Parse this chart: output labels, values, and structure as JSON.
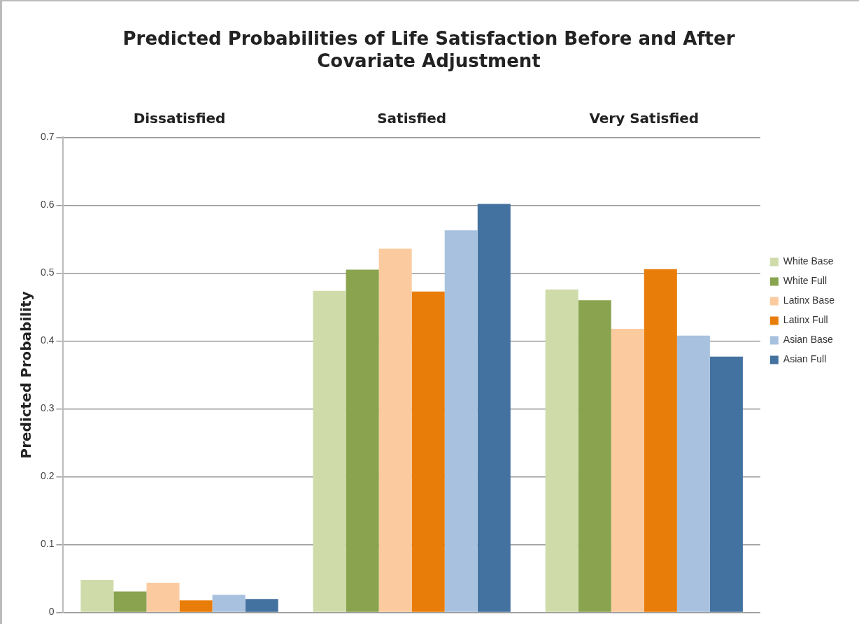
{
  "chart_data": {
    "type": "bar",
    "title": [
      "Predicted Probabilities of Life Satisfaction Before and After",
      "Covariate Adjustment"
    ],
    "ylabel": "Predicted Probability",
    "categories": [
      "Dissatisfied",
      "Satisfied",
      "Very Satisfied"
    ],
    "series": [
      {
        "name": "White Base",
        "color": "#cfdcaa",
        "values": [
          0.048,
          0.474,
          0.476
        ]
      },
      {
        "name": "White Full",
        "color": "#89a34e",
        "values": [
          0.031,
          0.505,
          0.46
        ]
      },
      {
        "name": "Latinx Base",
        "color": "#fbcb9f",
        "values": [
          0.044,
          0.536,
          0.418
        ]
      },
      {
        "name": "Latinx Full",
        "color": "#e97d09",
        "values": [
          0.018,
          0.473,
          0.506
        ]
      },
      {
        "name": "Asian Base",
        "color": "#a7c1df",
        "values": [
          0.026,
          0.563,
          0.408
        ]
      },
      {
        "name": "Asian Full",
        "color": "#4472a0",
        "values": [
          0.02,
          0.602,
          0.377
        ]
      }
    ],
    "ylim": [
      0,
      0.7
    ],
    "yticks": [
      0,
      0.1,
      0.2,
      0.3,
      0.4,
      0.5,
      0.6,
      0.7
    ],
    "grid": "y",
    "legend": "right"
  }
}
